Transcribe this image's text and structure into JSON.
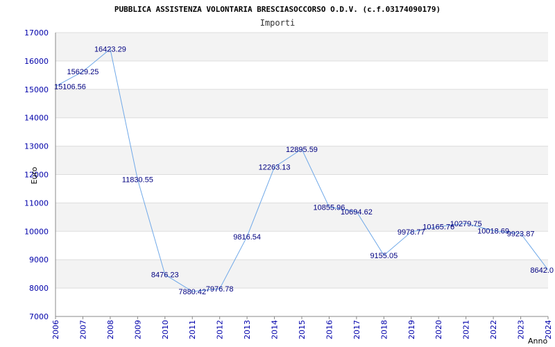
{
  "chart_data": {
    "type": "line",
    "title": "PUBBLICA ASSISTENZA VOLONTARIA BRESCIASOCCORSO O.D.V. (c.f.03174090179)",
    "subtitle": "Importi",
    "xlabel": "Anno",
    "ylabel": "Euro",
    "ylim": [
      7000,
      17000
    ],
    "yticks": [
      7000,
      8000,
      9000,
      10000,
      11000,
      12000,
      13000,
      14000,
      15000,
      16000,
      17000
    ],
    "x": [
      2006,
      2007,
      2008,
      2009,
      2010,
      2011,
      2012,
      2013,
      2014,
      2015,
      2016,
      2017,
      2018,
      2019,
      2020,
      2021,
      2022,
      2023,
      2024
    ],
    "values": [
      15106.56,
      15629.25,
      16423.29,
      11830.55,
      8476.23,
      7880.42,
      7976.78,
      9816.54,
      12263.13,
      12895.59,
      10855.96,
      10694.62,
      9155.05,
      9978.77,
      10165.76,
      10279.75,
      10018.69,
      9923.87,
      8642.0
    ],
    "labels": [
      "15106.56",
      "15629.25",
      "16423.29",
      "11830.55",
      "8476.23",
      "7880.42",
      "7976.78",
      "9816.54",
      "12263.13",
      "12895.59",
      "10855.96",
      "10694.62",
      "9155.05",
      "9978.77",
      "10165.76",
      "10279.75",
      "10018.69",
      "9923.87",
      "8642.0"
    ],
    "line_color": "#6fa8e8",
    "band_color": "#f3f3f3",
    "grid": true
  }
}
